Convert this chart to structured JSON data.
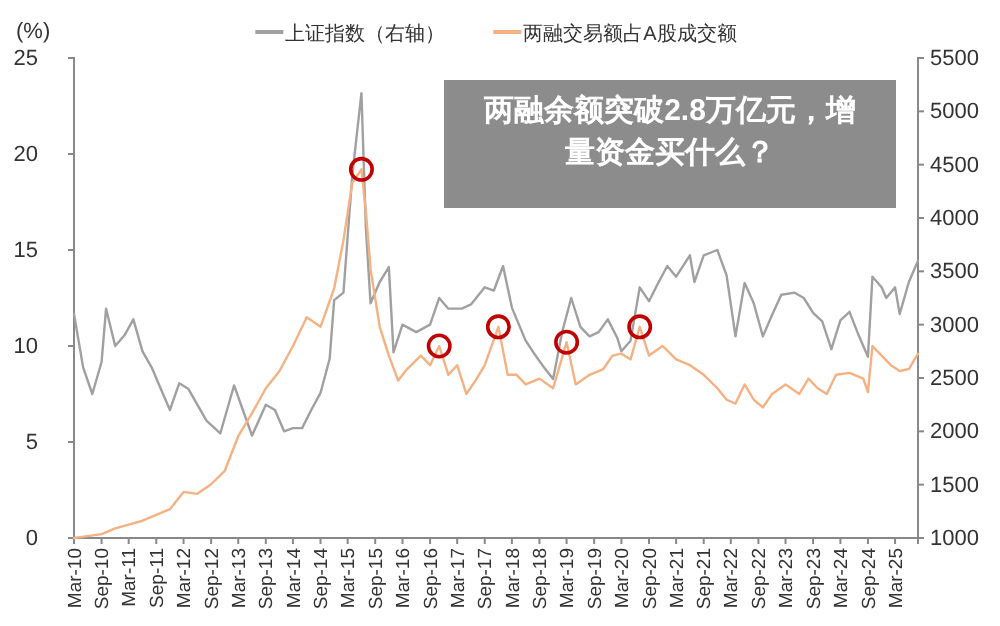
{
  "chart_data": {
    "type": "line",
    "title": "两融余额突破2.8万亿元，增量资金买什么？",
    "ylabel": "(%)",
    "xlim": [
      "2010-03",
      "2025-08"
    ],
    "xticks": [
      {
        "value": "2010-03",
        "label": "Mar-10"
      },
      {
        "value": "2010-09",
        "label": "Sep-10"
      },
      {
        "value": "2011-03",
        "label": "Mar-11"
      },
      {
        "value": "2011-09",
        "label": "Sep-11"
      },
      {
        "value": "2012-03",
        "label": "Mar-12"
      },
      {
        "value": "2012-09",
        "label": "Sep-12"
      },
      {
        "value": "2013-03",
        "label": "Mar-13"
      },
      {
        "value": "2013-09",
        "label": "Sep-13"
      },
      {
        "value": "2014-03",
        "label": "Mar-14"
      },
      {
        "value": "2014-09",
        "label": "Sep-14"
      },
      {
        "value": "2015-03",
        "label": "Mar-15"
      },
      {
        "value": "2015-09",
        "label": "Sep-15"
      },
      {
        "value": "2016-03",
        "label": "Mar-16"
      },
      {
        "value": "2016-09",
        "label": "Sep-16"
      },
      {
        "value": "2017-03",
        "label": "Mar-17"
      },
      {
        "value": "2017-09",
        "label": "Sep-17"
      },
      {
        "value": "2018-03",
        "label": "Mar-18"
      },
      {
        "value": "2018-09",
        "label": "Sep-18"
      },
      {
        "value": "2019-03",
        "label": "Mar-19"
      },
      {
        "value": "2019-09",
        "label": "Sep-19"
      },
      {
        "value": "2020-03",
        "label": "Mar-20"
      },
      {
        "value": "2020-09",
        "label": "Sep-20"
      },
      {
        "value": "2021-03",
        "label": "Mar-21"
      },
      {
        "value": "2021-09",
        "label": "Sep-21"
      },
      {
        "value": "2022-03",
        "label": "Mar-22"
      },
      {
        "value": "2022-09",
        "label": "Sep-22"
      },
      {
        "value": "2023-03",
        "label": "Mar-23"
      },
      {
        "value": "2023-09",
        "label": "Sep-23"
      },
      {
        "value": "2024-03",
        "label": "Mar-24"
      },
      {
        "value": "2024-09",
        "label": "Sep-24"
      },
      {
        "value": "2025-03",
        "label": "Mar-25"
      }
    ],
    "ylim": [
      0,
      25
    ],
    "yticks": [
      0,
      5,
      10,
      15,
      20,
      25
    ],
    "y2lim": [
      1000,
      5500
    ],
    "y2ticks": [
      1000,
      1500,
      2000,
      2500,
      3000,
      3500,
      4000,
      4500,
      5000,
      5500
    ],
    "legend": "top",
    "grid": false,
    "series": [
      {
        "name": "上证指数（右轴）",
        "color": "#a0a0a0",
        "axis": "y2",
        "x": [
          "2010-03",
          "2010-05",
          "2010-07",
          "2010-09",
          "2010-10",
          "2010-12",
          "2011-02",
          "2011-04",
          "2011-06",
          "2011-08",
          "2011-10",
          "2011-12",
          "2012-02",
          "2012-04",
          "2012-06",
          "2012-08",
          "2012-11",
          "2013-02",
          "2013-04",
          "2013-06",
          "2013-09",
          "2013-11",
          "2014-01",
          "2014-03",
          "2014-05",
          "2014-07",
          "2014-09",
          "2014-11",
          "2014-12",
          "2015-02",
          "2015-04",
          "2015-06",
          "2015-07",
          "2015-08",
          "2015-10",
          "2015-12",
          "2016-01",
          "2016-03",
          "2016-06",
          "2016-09",
          "2016-11",
          "2017-01",
          "2017-04",
          "2017-06",
          "2017-09",
          "2017-11",
          "2018-01",
          "2018-03",
          "2018-06",
          "2018-08",
          "2018-10",
          "2018-12",
          "2019-02",
          "2019-04",
          "2019-06",
          "2019-08",
          "2019-10",
          "2019-12",
          "2020-02",
          "2020-03",
          "2020-05",
          "2020-07",
          "2020-09",
          "2020-11",
          "2021-01",
          "2021-03",
          "2021-06",
          "2021-07",
          "2021-09",
          "2021-12",
          "2022-02",
          "2022-04",
          "2022-06",
          "2022-08",
          "2022-10",
          "2022-12",
          "2023-02",
          "2023-05",
          "2023-07",
          "2023-09",
          "2023-11",
          "2024-01",
          "2024-03",
          "2024-05",
          "2024-07",
          "2024-09",
          "2024-10",
          "2024-12",
          "2025-01",
          "2025-03",
          "2025-04",
          "2025-06",
          "2025-08"
        ],
        "values": [
          3100,
          2600,
          2350,
          2650,
          3150,
          2800,
          2900,
          3050,
          2750,
          2600,
          2400,
          2200,
          2450,
          2400,
          2250,
          2100,
          1980,
          2430,
          2200,
          1960,
          2250,
          2200,
          2000,
          2030,
          2030,
          2200,
          2360,
          2680,
          3230,
          3300,
          4400,
          5170,
          3900,
          3200,
          3400,
          3540,
          2740,
          3000,
          2930,
          3000,
          3250,
          3150,
          3150,
          3190,
          3350,
          3320,
          3550,
          3160,
          2850,
          2720,
          2600,
          2490,
          2940,
          3250,
          2980,
          2890,
          2930,
          3050,
          2880,
          2750,
          2850,
          3350,
          3220,
          3390,
          3550,
          3450,
          3650,
          3400,
          3650,
          3700,
          3460,
          2890,
          3390,
          3200,
          2890,
          3090,
          3280,
          3300,
          3250,
          3110,
          3030,
          2770,
          3040,
          3120,
          2900,
          2700,
          3450,
          3350,
          3250,
          3350,
          3100,
          3400,
          3600
        ]
      },
      {
        "name": "两融交易额占A股成交额",
        "color": "#f4b183",
        "x": [
          "2010-03",
          "2010-06",
          "2010-09",
          "2010-12",
          "2011-03",
          "2011-06",
          "2011-09",
          "2011-12",
          "2012-03",
          "2012-06",
          "2012-09",
          "2012-12",
          "2013-03",
          "2013-06",
          "2013-09",
          "2013-12",
          "2014-03",
          "2014-06",
          "2014-09",
          "2014-12",
          "2015-02",
          "2015-04",
          "2015-06",
          "2015-07",
          "2015-08",
          "2015-10",
          "2015-12",
          "2016-02",
          "2016-04",
          "2016-07",
          "2016-09",
          "2016-11",
          "2017-01",
          "2017-03",
          "2017-05",
          "2017-07",
          "2017-09",
          "2017-12",
          "2018-02",
          "2018-04",
          "2018-06",
          "2018-09",
          "2018-12",
          "2019-03",
          "2019-05",
          "2019-08",
          "2019-11",
          "2020-01",
          "2020-03",
          "2020-05",
          "2020-07",
          "2020-09",
          "2020-12",
          "2021-03",
          "2021-06",
          "2021-09",
          "2021-12",
          "2022-02",
          "2022-04",
          "2022-06",
          "2022-08",
          "2022-10",
          "2022-12",
          "2023-03",
          "2023-06",
          "2023-08",
          "2023-10",
          "2023-12",
          "2024-02",
          "2024-05",
          "2024-08",
          "2024-09",
          "2024-10",
          "2024-12",
          "2025-02",
          "2025-04",
          "2025-06",
          "2025-08"
        ],
        "values": [
          0,
          0.1,
          0.2,
          0.5,
          0.7,
          0.9,
          1.2,
          1.5,
          2.4,
          2.3,
          2.8,
          3.5,
          5.3,
          6.5,
          7.8,
          8.7,
          10.0,
          11.5,
          11.0,
          13.0,
          15.5,
          18.5,
          19.2,
          17.0,
          14.0,
          11.0,
          9.5,
          8.2,
          8.8,
          9.5,
          9.0,
          10.0,
          8.5,
          9.0,
          7.5,
          8.2,
          9.0,
          11.0,
          8.5,
          8.5,
          8.0,
          8.3,
          7.8,
          10.2,
          8.0,
          8.5,
          8.8,
          9.5,
          9.6,
          9.3,
          11.0,
          9.5,
          10.0,
          9.3,
          9.0,
          8.5,
          7.8,
          7.2,
          7.0,
          8.0,
          7.2,
          6.8,
          7.5,
          8.0,
          7.5,
          8.3,
          7.8,
          7.5,
          8.5,
          8.6,
          8.3,
          7.6,
          10.0,
          9.5,
          9.0,
          8.7,
          8.8,
          9.6
        ]
      },
      {
        "type": "scatter",
        "marker": "circle",
        "color": "#c00000",
        "x": [
          "2015-06",
          "2016-11",
          "2017-12",
          "2019-03",
          "2020-07"
        ],
        "values": [
          19.2,
          10.0,
          11.0,
          10.2,
          11.0
        ]
      }
    ]
  }
}
